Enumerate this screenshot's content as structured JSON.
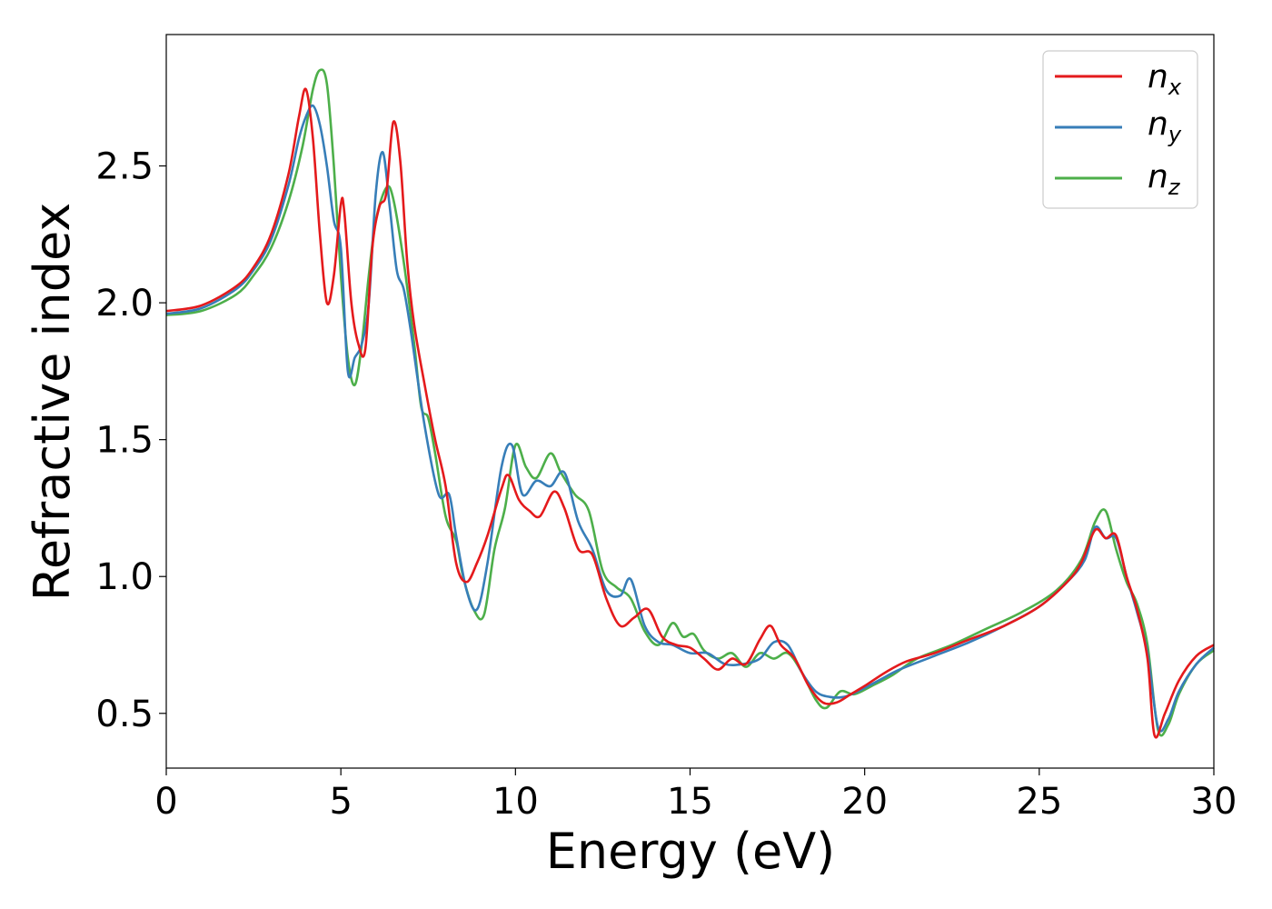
{
  "chart_data": {
    "type": "line",
    "title": "",
    "xlabel": "Energy (eV)",
    "ylabel": "Refractive index",
    "xlim": [
      0,
      30
    ],
    "ylim": [
      0.3,
      2.98
    ],
    "xticks": [
      0,
      5,
      10,
      15,
      20,
      25,
      30
    ],
    "xtick_labels": [
      "0",
      "5",
      "10",
      "15",
      "20",
      "25",
      "30"
    ],
    "yticks": [
      0.5,
      1.0,
      1.5,
      2.0,
      2.5
    ],
    "ytick_labels": [
      "0.5",
      "1.0",
      "1.5",
      "2.0",
      "2.5"
    ],
    "grid": false,
    "legend_position": "top-right",
    "series": [
      {
        "name": "n_x",
        "legend_main": "n",
        "legend_sub": "x",
        "color": "#e41a1c",
        "x": [
          0,
          1,
          2,
          2.5,
          3,
          3.5,
          3.8,
          4.0,
          4.2,
          4.4,
          4.6,
          4.8,
          5.0,
          5.1,
          5.3,
          5.5,
          5.7,
          5.9,
          6.1,
          6.3,
          6.5,
          6.7,
          6.9,
          7.1,
          7.4,
          7.7,
          8.0,
          8.3,
          8.6,
          8.9,
          9.2,
          9.6,
          9.8,
          10.1,
          10.4,
          10.7,
          11.1,
          11.4,
          11.8,
          12.2,
          12.6,
          13.0,
          13.4,
          13.8,
          14.2,
          14.6,
          15.0,
          15.4,
          15.8,
          16.2,
          16.6,
          17.0,
          17.3,
          17.6,
          18.0,
          18.4,
          18.8,
          19.2,
          19.6,
          20.0,
          20.6,
          21.2,
          22.0,
          23.0,
          24.0,
          25.0,
          25.8,
          26.2,
          26.6,
          26.9,
          27.2,
          27.5,
          27.8,
          28.1,
          28.3,
          28.6,
          29.0,
          29.5,
          30.0
        ],
        "y": [
          1.97,
          1.99,
          2.06,
          2.13,
          2.25,
          2.47,
          2.68,
          2.78,
          2.6,
          2.25,
          2.0,
          2.1,
          2.36,
          2.33,
          2.0,
          1.85,
          1.83,
          2.2,
          2.35,
          2.4,
          2.66,
          2.52,
          2.15,
          1.92,
          1.7,
          1.5,
          1.33,
          1.05,
          0.98,
          1.05,
          1.15,
          1.32,
          1.37,
          1.28,
          1.24,
          1.22,
          1.31,
          1.25,
          1.1,
          1.08,
          0.92,
          0.82,
          0.85,
          0.88,
          0.78,
          0.75,
          0.74,
          0.7,
          0.66,
          0.7,
          0.68,
          0.77,
          0.82,
          0.75,
          0.7,
          0.6,
          0.54,
          0.54,
          0.57,
          0.6,
          0.65,
          0.69,
          0.72,
          0.77,
          0.82,
          0.89,
          0.98,
          1.05,
          1.17,
          1.14,
          1.15,
          1.0,
          0.88,
          0.7,
          0.42,
          0.5,
          0.62,
          0.71,
          0.75
        ]
      },
      {
        "name": "n_y",
        "legend_main": "n",
        "legend_sub": "y",
        "color": "#377eb8",
        "x": [
          0,
          1,
          2,
          2.5,
          3,
          3.5,
          3.8,
          4.0,
          4.2,
          4.4,
          4.6,
          4.8,
          5.0,
          5.2,
          5.4,
          5.6,
          5.8,
          6.0,
          6.2,
          6.4,
          6.6,
          6.8,
          7.0,
          7.4,
          7.8,
          8.1,
          8.3,
          8.6,
          8.9,
          9.2,
          9.6,
          9.9,
          10.2,
          10.6,
          11.0,
          11.4,
          11.8,
          12.2,
          12.6,
          13.0,
          13.3,
          13.7,
          14.1,
          14.5,
          15.0,
          15.5,
          16.0,
          16.5,
          17.0,
          17.4,
          17.8,
          18.2,
          18.6,
          19.0,
          19.4,
          19.8,
          20.4,
          21.0,
          22.0,
          23.0,
          24.0,
          25.0,
          25.8,
          26.3,
          26.6,
          26.9,
          27.2,
          27.5,
          27.8,
          28.1,
          28.4,
          28.7,
          29.0,
          29.5,
          30.0
        ],
        "y": [
          1.96,
          1.98,
          2.05,
          2.12,
          2.23,
          2.43,
          2.6,
          2.68,
          2.72,
          2.65,
          2.5,
          2.3,
          2.2,
          1.75,
          1.8,
          1.85,
          2.0,
          2.4,
          2.55,
          2.35,
          2.12,
          2.05,
          1.9,
          1.55,
          1.3,
          1.3,
          1.15,
          0.95,
          0.88,
          1.05,
          1.4,
          1.48,
          1.3,
          1.35,
          1.33,
          1.38,
          1.2,
          1.1,
          0.95,
          0.93,
          0.99,
          0.82,
          0.76,
          0.75,
          0.72,
          0.72,
          0.68,
          0.68,
          0.7,
          0.76,
          0.75,
          0.65,
          0.58,
          0.56,
          0.56,
          0.58,
          0.62,
          0.66,
          0.71,
          0.76,
          0.82,
          0.89,
          0.98,
          1.06,
          1.18,
          1.14,
          1.14,
          1.0,
          0.87,
          0.72,
          0.45,
          0.48,
          0.58,
          0.68,
          0.74
        ]
      },
      {
        "name": "n_z",
        "legend_main": "n",
        "legend_sub": "z",
        "color": "#4daf4a",
        "x": [
          0,
          1,
          2,
          2.5,
          3,
          3.5,
          3.9,
          4.2,
          4.4,
          4.6,
          4.8,
          5.0,
          5.2,
          5.4,
          5.6,
          5.8,
          6.0,
          6.3,
          6.5,
          6.8,
          7.1,
          7.3,
          7.5,
          7.7,
          8.0,
          8.3,
          8.5,
          8.8,
          9.1,
          9.4,
          9.7,
          10.0,
          10.3,
          10.6,
          11.0,
          11.3,
          11.7,
          12.1,
          12.5,
          12.9,
          13.3,
          13.7,
          14.1,
          14.5,
          14.8,
          15.1,
          15.4,
          15.8,
          16.2,
          16.6,
          17.0,
          17.4,
          17.8,
          18.2,
          18.6,
          18.9,
          19.3,
          19.7,
          20.2,
          20.8,
          21.5,
          22.5,
          23.5,
          24.5,
          25.5,
          26.2,
          26.6,
          26.9,
          27.2,
          27.5,
          27.8,
          28.1,
          28.4,
          28.7,
          29.0,
          29.5,
          30.0
        ],
        "y": [
          1.955,
          1.97,
          2.03,
          2.1,
          2.2,
          2.37,
          2.57,
          2.78,
          2.85,
          2.8,
          2.5,
          2.1,
          1.8,
          1.7,
          1.85,
          2.1,
          2.3,
          2.42,
          2.38,
          2.15,
          1.85,
          1.62,
          1.58,
          1.45,
          1.22,
          1.13,
          1.0,
          0.88,
          0.86,
          1.1,
          1.25,
          1.48,
          1.4,
          1.36,
          1.45,
          1.38,
          1.3,
          1.24,
          1.02,
          0.96,
          0.92,
          0.8,
          0.75,
          0.83,
          0.78,
          0.79,
          0.73,
          0.7,
          0.72,
          0.67,
          0.72,
          0.7,
          0.72,
          0.65,
          0.55,
          0.52,
          0.58,
          0.57,
          0.6,
          0.64,
          0.7,
          0.75,
          0.81,
          0.87,
          0.95,
          1.06,
          1.2,
          1.24,
          1.1,
          0.98,
          0.9,
          0.75,
          0.44,
          0.46,
          0.57,
          0.68,
          0.73
        ]
      }
    ]
  }
}
